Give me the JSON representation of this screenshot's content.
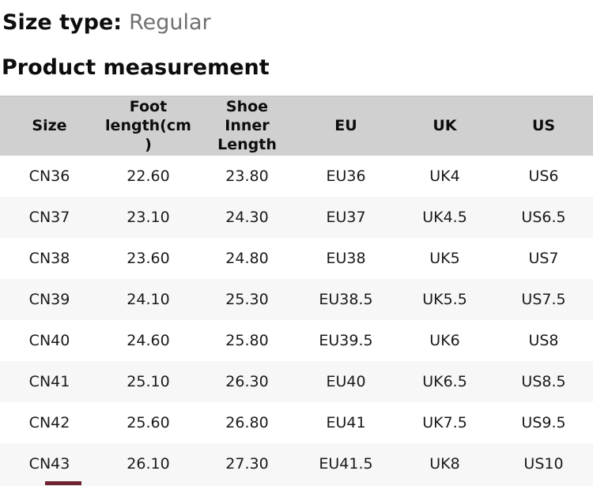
{
  "size_type": {
    "label": "Size type:",
    "value": "Regular"
  },
  "section_title": "Product measurement",
  "table": {
    "headers": [
      "Size",
      "Foot\nlength(cm\n)",
      "Shoe\nInner\nLength",
      "EU",
      "UK",
      "US"
    ],
    "rows": [
      [
        "CN36",
        "22.60",
        "23.80",
        "EU36",
        "UK4",
        "US6"
      ],
      [
        "CN37",
        "23.10",
        "24.30",
        "EU37",
        "UK4.5",
        "US6.5"
      ],
      [
        "CN38",
        "23.60",
        "24.80",
        "EU38",
        "UK5",
        "US7"
      ],
      [
        "CN39",
        "24.10",
        "25.30",
        "EU38.5",
        "UK5.5",
        "US7.5"
      ],
      [
        "CN40",
        "24.60",
        "25.80",
        "EU39.5",
        "UK6",
        "US8"
      ],
      [
        "CN41",
        "25.10",
        "26.30",
        "EU40",
        "UK6.5",
        "US8.5"
      ],
      [
        "CN42",
        "25.60",
        "26.80",
        "EU41",
        "UK7.5",
        "US9.5"
      ],
      [
        "CN43",
        "26.10",
        "27.30",
        "EU41.5",
        "UK8",
        "US10"
      ]
    ]
  },
  "colors": {
    "header_bg": "#d0d0d0",
    "stripe_bg": "#f7f7f7",
    "row_bg": "#ffffff",
    "value_gray": "#707070",
    "peek_color": "#6d2430"
  }
}
